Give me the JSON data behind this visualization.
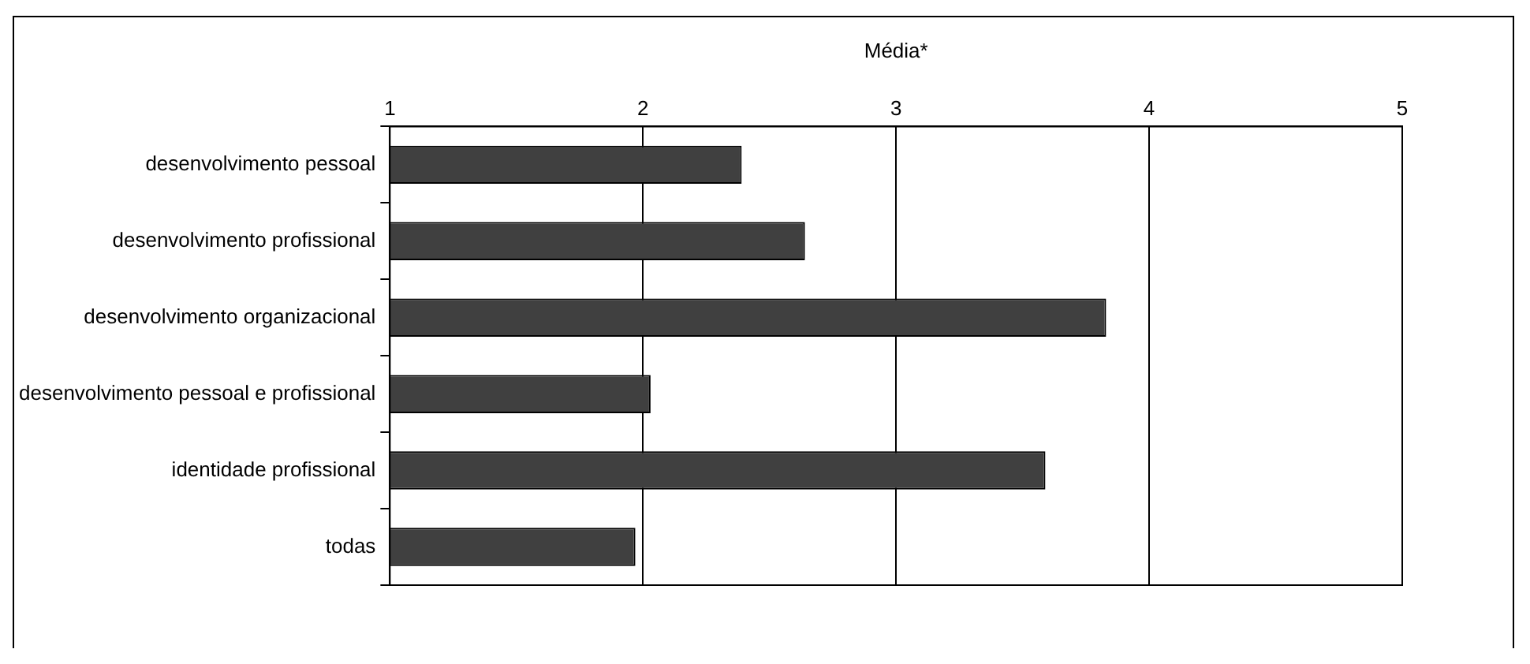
{
  "chart_data": {
    "type": "bar",
    "orientation": "horizontal",
    "xlabel": "Média*",
    "categories": [
      "desenvolvimento pessoal",
      "desenvolvimento profissional",
      "desenvolvimento organizacional",
      "desenvolvimento pessoal e profissional",
      "identidade profissional",
      "todas"
    ],
    "values": [
      2.39,
      2.64,
      3.83,
      2.03,
      3.59,
      1.97
    ],
    "color": "#404040",
    "xlim": [
      1,
      5
    ],
    "xticks": [
      1,
      2,
      3,
      4,
      5
    ],
    "grid": "x",
    "legend": false
  }
}
